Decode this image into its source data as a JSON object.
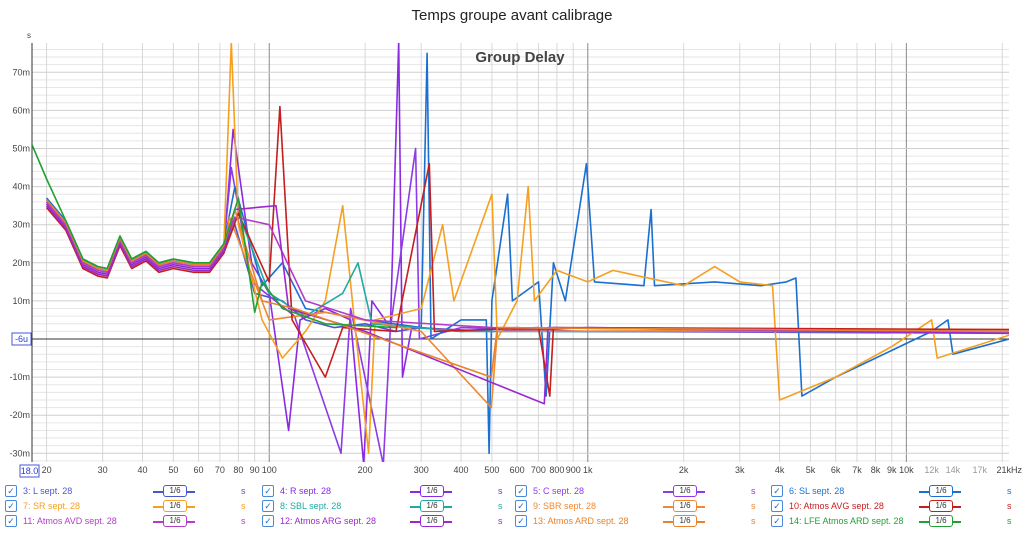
{
  "window": {
    "title": "Temps groupe avant calibrage"
  },
  "chart_data": {
    "type": "line",
    "title": "Group Delay",
    "xlabel": "kHz",
    "ylabel": "s",
    "xscale": "log",
    "xlim": [
      18,
      21000
    ],
    "ylim": [
      -0.033,
      0.0777
    ],
    "cursor_x_label": "18.0",
    "cursor_y_label": "-6u",
    "xticks": [
      {
        "v": 20,
        "l": "20"
      },
      {
        "v": 30,
        "l": "30"
      },
      {
        "v": 40,
        "l": "40"
      },
      {
        "v": 50,
        "l": "50"
      },
      {
        "v": 60,
        "l": "60"
      },
      {
        "v": 70,
        "l": "70"
      },
      {
        "v": 80,
        "l": "80"
      },
      {
        "v": 90,
        "l": "90"
      },
      {
        "v": 100,
        "l": "100"
      },
      {
        "v": 200,
        "l": "200"
      },
      {
        "v": 300,
        "l": "300"
      },
      {
        "v": 400,
        "l": "400"
      },
      {
        "v": 500,
        "l": "500"
      },
      {
        "v": 600,
        "l": "600"
      },
      {
        "v": 700,
        "l": "700"
      },
      {
        "v": 800,
        "l": "800"
      },
      {
        "v": 900,
        "l": "900"
      },
      {
        "v": 1000,
        "l": "1k"
      },
      {
        "v": 2000,
        "l": "2k"
      },
      {
        "v": 3000,
        "l": "3k"
      },
      {
        "v": 4000,
        "l": "4k"
      },
      {
        "v": 5000,
        "l": "5k"
      },
      {
        "v": 6000,
        "l": "6k"
      },
      {
        "v": 7000,
        "l": "7k"
      },
      {
        "v": 8000,
        "l": "8k"
      },
      {
        "v": 9000,
        "l": "9k"
      },
      {
        "v": 10000,
        "l": "10k"
      },
      {
        "v": 12000,
        "l": "12k"
      },
      {
        "v": 14000,
        "l": "14k"
      },
      {
        "v": 17000,
        "l": "17k"
      },
      {
        "v": 21000,
        "l": "21kHz"
      }
    ],
    "yticks": [
      {
        "v": 70,
        "l": "70m"
      },
      {
        "v": 60,
        "l": "60m"
      },
      {
        "v": 50,
        "l": "50m"
      },
      {
        "v": 40,
        "l": "40m"
      },
      {
        "v": 30,
        "l": "30m"
      },
      {
        "v": 20,
        "l": "20m"
      },
      {
        "v": 10,
        "l": "10m"
      },
      {
        "v": -10,
        "l": "-10m"
      },
      {
        "v": -20,
        "l": "-20m"
      },
      {
        "v": -30,
        "l": "-30m"
      }
    ],
    "y_units": "ms",
    "low_shape": [
      [
        20,
        36
      ],
      [
        23,
        30
      ],
      [
        26,
        20
      ],
      [
        29,
        18
      ],
      [
        31,
        17.5
      ],
      [
        34,
        26
      ],
      [
        37,
        20
      ],
      [
        41,
        22
      ],
      [
        45,
        19
      ],
      [
        50,
        20
      ],
      [
        58,
        19
      ],
      [
        65,
        19
      ],
      [
        72,
        24
      ]
    ],
    "series": [
      {
        "name": "3: L sept. 28",
        "color": "#4a55d0",
        "smoothing": "1/6",
        "unit": "s",
        "low_offset": 0,
        "points": [
          [
            78,
            30
          ],
          [
            90,
            12
          ],
          [
            110,
            10
          ],
          [
            130,
            5
          ],
          [
            160,
            3
          ],
          [
            200,
            4
          ],
          [
            250,
            2
          ],
          [
            300,
            3
          ],
          [
            400,
            2
          ],
          [
            600,
            3
          ],
          [
            800,
            2
          ],
          [
            1000,
            2
          ],
          [
            2000,
            2
          ],
          [
            5000,
            2
          ],
          [
            10000,
            2
          ],
          [
            21000,
            2
          ]
        ]
      },
      {
        "name": "4: R sept. 28",
        "color": "#8a2be2",
        "smoothing": "1/6",
        "unit": "s",
        "low_offset": -0.5,
        "points": [
          [
            77,
            55
          ],
          [
            88,
            20
          ],
          [
            100,
            12
          ],
          [
            115,
            -24
          ],
          [
            125,
            5
          ],
          [
            150,
            8
          ],
          [
            180,
            5
          ],
          [
            198,
            -33
          ],
          [
            210,
            10
          ],
          [
            240,
            3
          ],
          [
            255,
            78
          ],
          [
            262,
            -10
          ],
          [
            280,
            3
          ],
          [
            500,
            2
          ],
          [
            1000,
            3
          ],
          [
            21000,
            2
          ]
        ]
      },
      {
        "name": "5: C sept. 28",
        "color": "#8e3ae6",
        "smoothing": "1/6",
        "unit": "s",
        "low_offset": 0.5,
        "points": [
          [
            76,
            45
          ],
          [
            88,
            15
          ],
          [
            120,
            6
          ],
          [
            168,
            -30
          ],
          [
            180,
            8
          ],
          [
            228,
            -33
          ],
          [
            240,
            3
          ],
          [
            288,
            50
          ],
          [
            296,
            0
          ],
          [
            400,
            3
          ],
          [
            1000,
            2
          ],
          [
            21000,
            1.5
          ]
        ]
      },
      {
        "name": "6: SL sept. 28",
        "color": "#1a6fd0",
        "smoothing": "1/6",
        "unit": "s",
        "low_offset": 1,
        "points": [
          [
            78,
            40
          ],
          [
            95,
            14
          ],
          [
            110,
            20
          ],
          [
            130,
            8
          ],
          [
            200,
            5
          ],
          [
            300,
            3
          ],
          [
            313,
            75
          ],
          [
            322,
            0
          ],
          [
            400,
            5
          ],
          [
            480,
            5
          ],
          [
            490,
            -30
          ],
          [
            500,
            10
          ],
          [
            560,
            38
          ],
          [
            580,
            10
          ],
          [
            700,
            15
          ],
          [
            740,
            -15
          ],
          [
            780,
            20
          ],
          [
            850,
            10
          ],
          [
            990,
            46
          ],
          [
            1050,
            15
          ],
          [
            1500,
            14
          ],
          [
            1580,
            34
          ],
          [
            1620,
            14
          ],
          [
            2500,
            15
          ],
          [
            3500,
            14
          ],
          [
            4200,
            15
          ],
          [
            4500,
            16
          ],
          [
            4700,
            -15
          ],
          [
            6000,
            -10
          ],
          [
            9000,
            -3
          ],
          [
            12000,
            2
          ],
          [
            13500,
            5
          ],
          [
            14000,
            -4
          ],
          [
            21000,
            0
          ]
        ]
      },
      {
        "name": "7: SR sept. 28",
        "color": "#f5a020",
        "smoothing": "1/6",
        "unit": "s",
        "low_offset": 0,
        "points": [
          [
            76,
            78
          ],
          [
            80,
            30
          ],
          [
            95,
            5
          ],
          [
            110,
            -5
          ],
          [
            130,
            2
          ],
          [
            150,
            10
          ],
          [
            170,
            35
          ],
          [
            185,
            5
          ],
          [
            205,
            -30
          ],
          [
            215,
            5
          ],
          [
            300,
            8
          ],
          [
            350,
            30
          ],
          [
            380,
            10
          ],
          [
            500,
            38
          ],
          [
            520,
            0
          ],
          [
            600,
            10
          ],
          [
            650,
            40
          ],
          [
            680,
            10
          ],
          [
            800,
            18
          ],
          [
            1000,
            15
          ],
          [
            1200,
            18
          ],
          [
            2000,
            14
          ],
          [
            2500,
            19
          ],
          [
            3000,
            15
          ],
          [
            3800,
            14
          ],
          [
            4000,
            -16
          ],
          [
            6000,
            -10
          ],
          [
            9000,
            -2
          ],
          [
            12000,
            5
          ],
          [
            12500,
            -5
          ],
          [
            21000,
            1
          ]
        ]
      },
      {
        "name": "8: SBL sept. 28",
        "color": "#22aaa0",
        "smoothing": "1/6",
        "unit": "s",
        "low_offset": 0.5,
        "points": [
          [
            80,
            33
          ],
          [
            100,
            12
          ],
          [
            130,
            6
          ],
          [
            170,
            12
          ],
          [
            190,
            20
          ],
          [
            210,
            4
          ],
          [
            400,
            2
          ],
          [
            21000,
            2
          ]
        ]
      },
      {
        "name": "9: SBR sept. 28",
        "color": "#ee8833",
        "smoothing": "1/6",
        "unit": "s",
        "low_offset": -1,
        "points": [
          [
            75,
            32
          ],
          [
            100,
            5
          ],
          [
            150,
            7
          ],
          [
            300,
            2
          ],
          [
            498,
            -18
          ],
          [
            520,
            2
          ],
          [
            21000,
            2.5
          ]
        ]
      },
      {
        "name": "10: Atmos AVG sept. 28",
        "color": "#c41e1e",
        "smoothing": "1/6",
        "unit": "s",
        "low_offset": -1.5,
        "points": [
          [
            80,
            33
          ],
          [
            100,
            15
          ],
          [
            108,
            61
          ],
          [
            118,
            5
          ],
          [
            150,
            -10
          ],
          [
            170,
            3
          ],
          [
            250,
            2
          ],
          [
            318,
            46
          ],
          [
            330,
            2
          ],
          [
            700,
            3
          ],
          [
            760,
            -15
          ],
          [
            780,
            3
          ],
          [
            21000,
            2.5
          ]
        ]
      },
      {
        "name": "11: Atmos AVD sept. 28",
        "color": "#b33cc8",
        "smoothing": "1/6",
        "unit": "s",
        "low_offset": 0,
        "points": [
          [
            78,
            32
          ],
          [
            100,
            30
          ],
          [
            130,
            10
          ],
          [
            200,
            5
          ],
          [
            500,
            3
          ],
          [
            21000,
            2
          ]
        ]
      },
      {
        "name": "12: Atmos ARG sept. 28",
        "color": "#9a28d0",
        "smoothing": "1/6",
        "unit": "s",
        "low_offset": -1,
        "points": [
          [
            78,
            34
          ],
          [
            105,
            35
          ],
          [
            115,
            8
          ],
          [
            200,
            2
          ],
          [
            730,
            -17
          ],
          [
            750,
            3
          ],
          [
            21000,
            1.5
          ]
        ]
      },
      {
        "name": "13: Atmos ARD sept. 28",
        "color": "#e8822d",
        "smoothing": "1/6",
        "unit": "s",
        "low_offset": 0.5,
        "points": [
          [
            78,
            34
          ],
          [
            95,
            10
          ],
          [
            120,
            8
          ],
          [
            498,
            -10
          ],
          [
            520,
            3
          ],
          [
            21000,
            2
          ]
        ]
      },
      {
        "name": "14: LFE Atmos ARD sept. 28",
        "color": "#22a033",
        "smoothing": "1/6",
        "unit": "s",
        "low_offset": 1,
        "points": [
          [
            18,
            51
          ],
          [
            20,
            42
          ],
          [
            80,
            37
          ],
          [
            90,
            7
          ],
          [
            95,
            15
          ],
          [
            110,
            8
          ],
          [
            150,
            4
          ],
          [
            250,
            3
          ]
        ]
      }
    ]
  }
}
